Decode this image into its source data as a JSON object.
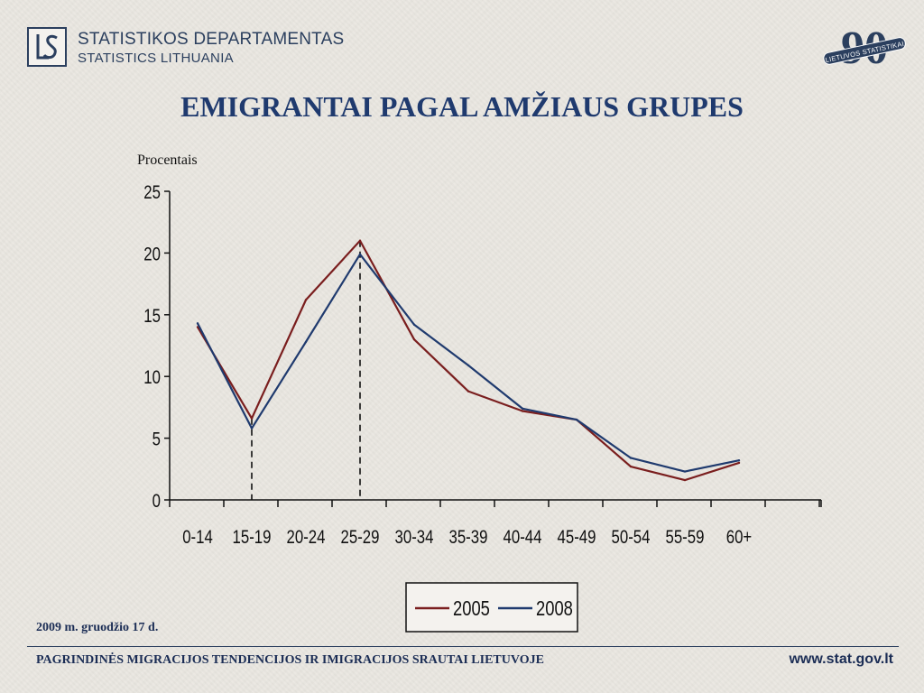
{
  "header": {
    "org_name": "STATISTIKOS DEPARTAMENTAS",
    "org_subname": "STATISTICS LITHUANIA",
    "anniversary_number": "90",
    "anniversary_text": "LIETUVOS STATISTIKAI",
    "logo_letters": "LS"
  },
  "chart_data": {
    "type": "line",
    "title": "EMIGRANTAI PAGAL AMŽIAUS GRUPES",
    "ylabel": "Procentais",
    "xlabel": "",
    "categories": [
      "0-14",
      "15-19",
      "20-24",
      "25-29",
      "30-34",
      "35-39",
      "40-44",
      "45-49",
      "50-54",
      "55-59",
      "60+"
    ],
    "ylim": [
      0,
      25
    ],
    "yticks": [
      0,
      5,
      10,
      15,
      20,
      25
    ],
    "grid": false,
    "legend_position": "bottom",
    "series": [
      {
        "name": "2005",
        "color": "#7a1e1e",
        "values": [
          14.0,
          6.6,
          16.2,
          21.0,
          13.0,
          8.8,
          7.2,
          6.5,
          2.7,
          1.6,
          3.0
        ]
      },
      {
        "name": "2008",
        "color": "#1f3a6e",
        "values": [
          14.3,
          5.8,
          12.8,
          19.9,
          14.2,
          10.9,
          7.4,
          6.5,
          3.4,
          2.3,
          3.2
        ]
      }
    ],
    "highlight_categories": [
      "15-19",
      "25-29"
    ]
  },
  "footer": {
    "date": "2009 m. gruodžio 17 d.",
    "subtitle": "PAGRINDINĖS MIGRACIJOS TENDENCIJOS IR  IMIGRACIJOS SRAUTAI LIETUVOJE",
    "website": "www.stat.gov.lt"
  }
}
